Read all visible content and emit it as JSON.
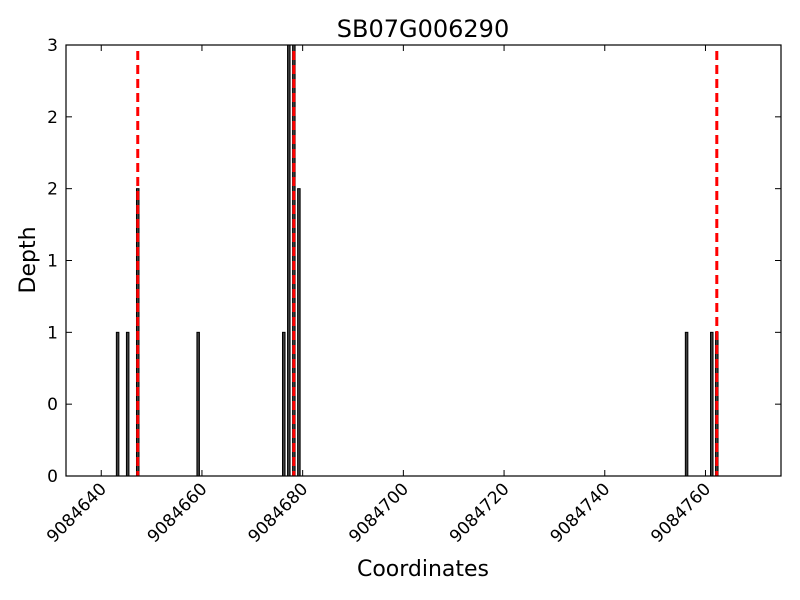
{
  "chart_data": {
    "type": "bar",
    "title": "SB07G006290",
    "xlabel": "Coordinates",
    "ylabel": "Depth",
    "xlim": [
      9084633,
      9084775
    ],
    "ylim": [
      0,
      3
    ],
    "x_ticks": [
      9084640,
      9084660,
      9084680,
      9084700,
      9084720,
      9084740,
      9084760
    ],
    "y_ticks": [
      0,
      0.5,
      1,
      1.5,
      2,
      2.5,
      3
    ],
    "y_tick_labels": [
      "0",
      "0",
      "1",
      "1",
      "2",
      "2",
      "3"
    ],
    "bars": [
      {
        "x": 9084643,
        "value": 1
      },
      {
        "x": 9084645,
        "value": 1
      },
      {
        "x": 9084647,
        "value": 2
      },
      {
        "x": 9084659,
        "value": 1
      },
      {
        "x": 9084676,
        "value": 1
      },
      {
        "x": 9084677,
        "value": 3
      },
      {
        "x": 9084678,
        "value": 3
      },
      {
        "x": 9084679,
        "value": 2
      },
      {
        "x": 9084756,
        "value": 1
      },
      {
        "x": 9084761,
        "value": 1
      },
      {
        "x": 9084762,
        "value": 1
      }
    ],
    "reference_lines": [
      9084647,
      9084678,
      9084762
    ],
    "bar_color": "#404040",
    "reference_line_color": "#ff0000",
    "grid": false
  }
}
